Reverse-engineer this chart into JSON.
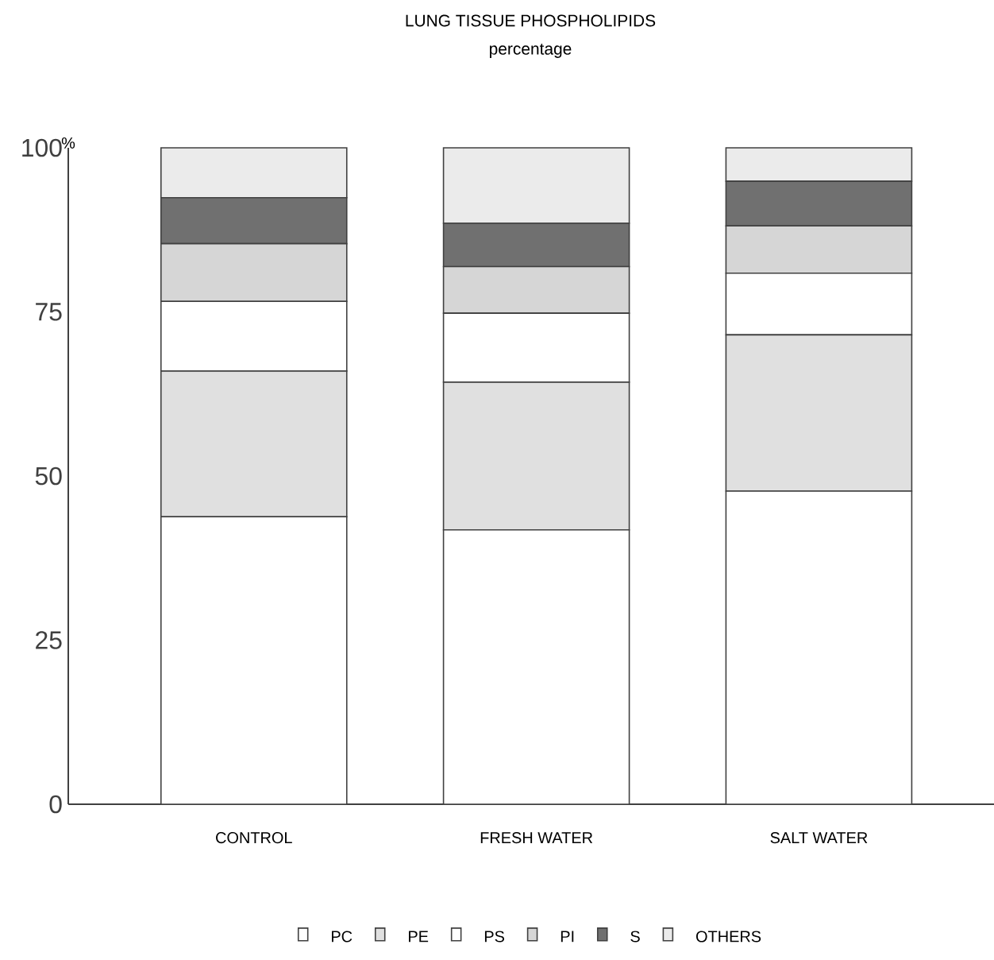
{
  "chart_data": {
    "type": "bar",
    "stacked": true,
    "title": "LUNG TISSUE PHOSPHOLIPIDS",
    "subtitle": "percentage",
    "ylabel": "%",
    "categories": [
      "CONTROL",
      "FRESH WATER",
      "SALT WATER"
    ],
    "series": [
      {
        "name": "PC",
        "color": "#ffffff",
        "values": [
          43.8,
          41.8,
          47.7
        ]
      },
      {
        "name": "PE",
        "color": "#e0e0e0",
        "values": [
          22.2,
          22.5,
          23.8
        ]
      },
      {
        "name": "PS",
        "color": "#ffffff",
        "values": [
          10.6,
          10.5,
          9.4
        ]
      },
      {
        "name": "PI",
        "color": "#d6d6d6",
        "values": [
          8.8,
          7.1,
          7.2
        ]
      },
      {
        "name": "S",
        "color": "#707070",
        "values": [
          7.0,
          6.6,
          6.8
        ]
      },
      {
        "name": "OTHERS",
        "color": "#ebebeb",
        "values": [
          7.6,
          11.5,
          5.1
        ]
      }
    ],
    "ylim": [
      0,
      100
    ],
    "yticks": [
      0,
      25,
      50,
      75,
      100
    ],
    "grid": false,
    "legend": "bottom"
  }
}
